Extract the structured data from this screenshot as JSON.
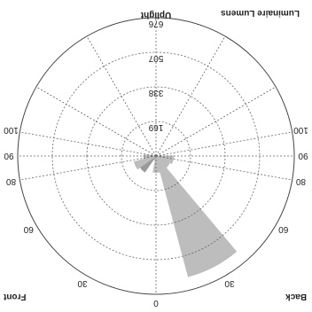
{
  "chart_data": {
    "type": "polar-area",
    "corner_labels": {
      "top_left": "Front",
      "top_right": "Back",
      "bottom_left": "Uplight",
      "bottom_right": "Luminaire Lumens"
    },
    "angle_labels": [
      "0",
      "30",
      "30",
      "60",
      "60",
      "80",
      "80",
      "90",
      "90",
      "100",
      "100"
    ],
    "radial_labels": [
      "169",
      "338",
      "507",
      "676"
    ],
    "r_max": 676,
    "grid": true,
    "series": [
      {
        "angle_from": 140,
        "angle_to": 165,
        "value": 610,
        "color": "#bdbdbd"
      },
      {
        "angle_from": 165,
        "angle_to": 190,
        "value": 80,
        "color": "#bdbdbd"
      },
      {
        "angle_from": 190,
        "angle_to": 210,
        "value": 20,
        "color": "#bdbdbd"
      },
      {
        "angle_from": 215,
        "angle_to": 235,
        "value": 95,
        "color": "#9a9a9a"
      },
      {
        "angle_from": 235,
        "angle_to": 255,
        "value": 110,
        "color": "#bdbdbd"
      },
      {
        "angle_from": 255,
        "angle_to": 275,
        "value": 60,
        "color": "#bdbdbd"
      },
      {
        "angle_from": 90,
        "angle_to": 115,
        "value": 85,
        "color": "#bdbdbd"
      },
      {
        "angle_from": 115,
        "angle_to": 140,
        "value": 75,
        "color": "#bdbdbd"
      }
    ]
  }
}
